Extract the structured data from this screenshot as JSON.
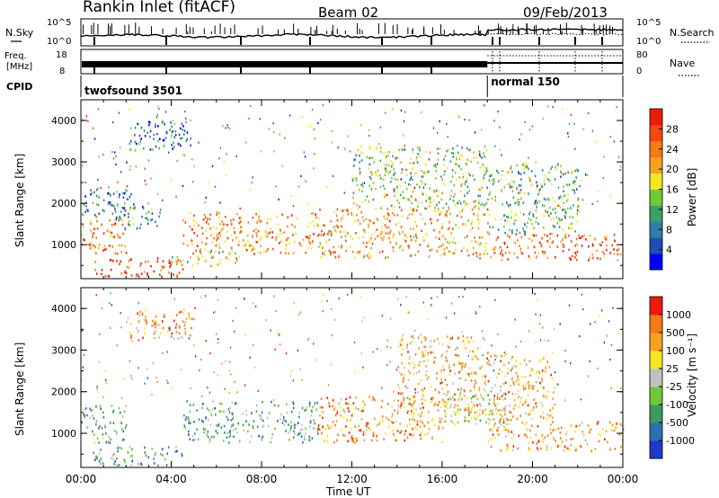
{
  "header": {
    "station": "Rankin Inlet (fitACF)",
    "beam": "Beam 02",
    "date": "09/Feb/2013"
  },
  "top_panels": {
    "nsky_label": "N.Sky",
    "nsky_ticks": [
      "10^5",
      "10^0"
    ],
    "nsearch_label": "N.Search",
    "freq_label_1": "Freq.",
    "freq_label_2": "[MHz]",
    "freq_ticks": [
      "18",
      "8"
    ],
    "nave_label": "Nave",
    "nave_ticks": [
      "80",
      "0"
    ],
    "cpid_label": "CPID",
    "cpid_segments": [
      {
        "name": "twofsound 3501",
        "start_hour": 0,
        "end_hour": 18.0
      },
      {
        "name": "normal 150",
        "start_hour": 18.0,
        "end_hour": 24
      }
    ]
  },
  "chart_data": [
    {
      "type": "heatmap",
      "quantity": "Power",
      "xlabel": "",
      "ylabel": "Slant Range [km]",
      "xlim": [
        0,
        24
      ],
      "ylim": [
        180,
        4500
      ],
      "x_ticks": [],
      "y_ticks": [
        "1000",
        "2000",
        "3000",
        "4000"
      ],
      "colorbar": {
        "label": "Power [dB]",
        "ticks": [
          "28",
          "24",
          "20",
          "16",
          "12",
          "8",
          "4"
        ],
        "colors": [
          "#0000ff",
          "#1f4fb4",
          "#2e7fa8",
          "#3aa06a",
          "#70c93a",
          "#f5e623",
          "#f8a020",
          "#f57a18",
          "#f24a12",
          "#ee1a0c"
        ]
      },
      "scatter_bands": [
        {
          "t0": 0.0,
          "t1": 2.0,
          "r0": 800,
          "r1": 1700,
          "level": 0.78
        },
        {
          "t0": 0.0,
          "t1": 2.2,
          "r0": 1700,
          "r1": 2400,
          "level": 0.25
        },
        {
          "t0": 0.5,
          "t1": 4.5,
          "r0": 250,
          "r1": 700,
          "level": 0.9
        },
        {
          "t0": 1.5,
          "t1": 3.5,
          "r0": 1400,
          "r1": 2000,
          "level": 0.3
        },
        {
          "t0": 4.5,
          "t1": 10.5,
          "r0": 800,
          "r1": 1800,
          "level": 0.72
        },
        {
          "t0": 4.0,
          "t1": 7.0,
          "r0": 500,
          "r1": 900,
          "level": 0.5
        },
        {
          "t0": 10.5,
          "t1": 18.0,
          "r0": 700,
          "r1": 1900,
          "level": 0.68
        },
        {
          "t0": 12.0,
          "t1": 18.0,
          "r0": 1900,
          "r1": 3400,
          "level": 0.45
        },
        {
          "t0": 18.0,
          "t1": 24.0,
          "r0": 650,
          "r1": 1300,
          "level": 0.8
        },
        {
          "t0": 18.0,
          "t1": 22.0,
          "r0": 1300,
          "r1": 3000,
          "level": 0.4
        },
        {
          "t0": 2.0,
          "t1": 5.0,
          "r0": 3300,
          "r1": 4000,
          "level": 0.25
        }
      ]
    },
    {
      "type": "heatmap",
      "quantity": "Velocity",
      "xlabel": "Time UT",
      "ylabel": "Slant Range [km]",
      "xlim": [
        0,
        24
      ],
      "ylim": [
        180,
        4500
      ],
      "x_ticks": [
        "00:00",
        "04:00",
        "08:00",
        "12:00",
        "16:00",
        "20:00",
        "00:00"
      ],
      "y_ticks": [
        "1000",
        "2000",
        "3000",
        "4000"
      ],
      "colorbar": {
        "label": "Velocity [m s⁻¹]",
        "ticks": [
          "1000",
          "500",
          "100",
          "25",
          "-25",
          "-100",
          "-500",
          "-1000"
        ],
        "colors": [
          "#1a3cc8",
          "#2d70b0",
          "#3a9a60",
          "#6ec83a",
          "#c0c0c0",
          "#f5e623",
          "#f8a020",
          "#f57a18",
          "#ee1a0c"
        ]
      },
      "scatter_bands": [
        {
          "t0": 0.0,
          "t1": 2.0,
          "r0": 800,
          "r1": 1700,
          "level": 0.35
        },
        {
          "t0": 0.5,
          "t1": 4.5,
          "r0": 250,
          "r1": 700,
          "level": 0.3
        },
        {
          "t0": 4.5,
          "t1": 10.5,
          "r0": 800,
          "r1": 1800,
          "level": 0.32
        },
        {
          "t0": 10.5,
          "t1": 16.0,
          "r0": 800,
          "r1": 1900,
          "level": 0.75
        },
        {
          "t0": 14.0,
          "t1": 18.0,
          "r0": 1500,
          "r1": 3400,
          "level": 0.7
        },
        {
          "t0": 16.0,
          "t1": 19.0,
          "r0": 1200,
          "r1": 2000,
          "level": 0.5
        },
        {
          "t0": 18.0,
          "t1": 24.0,
          "r0": 600,
          "r1": 1300,
          "level": 0.72
        },
        {
          "t0": 18.0,
          "t1": 21.0,
          "r0": 1300,
          "r1": 2900,
          "level": 0.7
        },
        {
          "t0": 2.0,
          "t1": 5.0,
          "r0": 3300,
          "r1": 4000,
          "level": 0.72
        }
      ]
    }
  ]
}
